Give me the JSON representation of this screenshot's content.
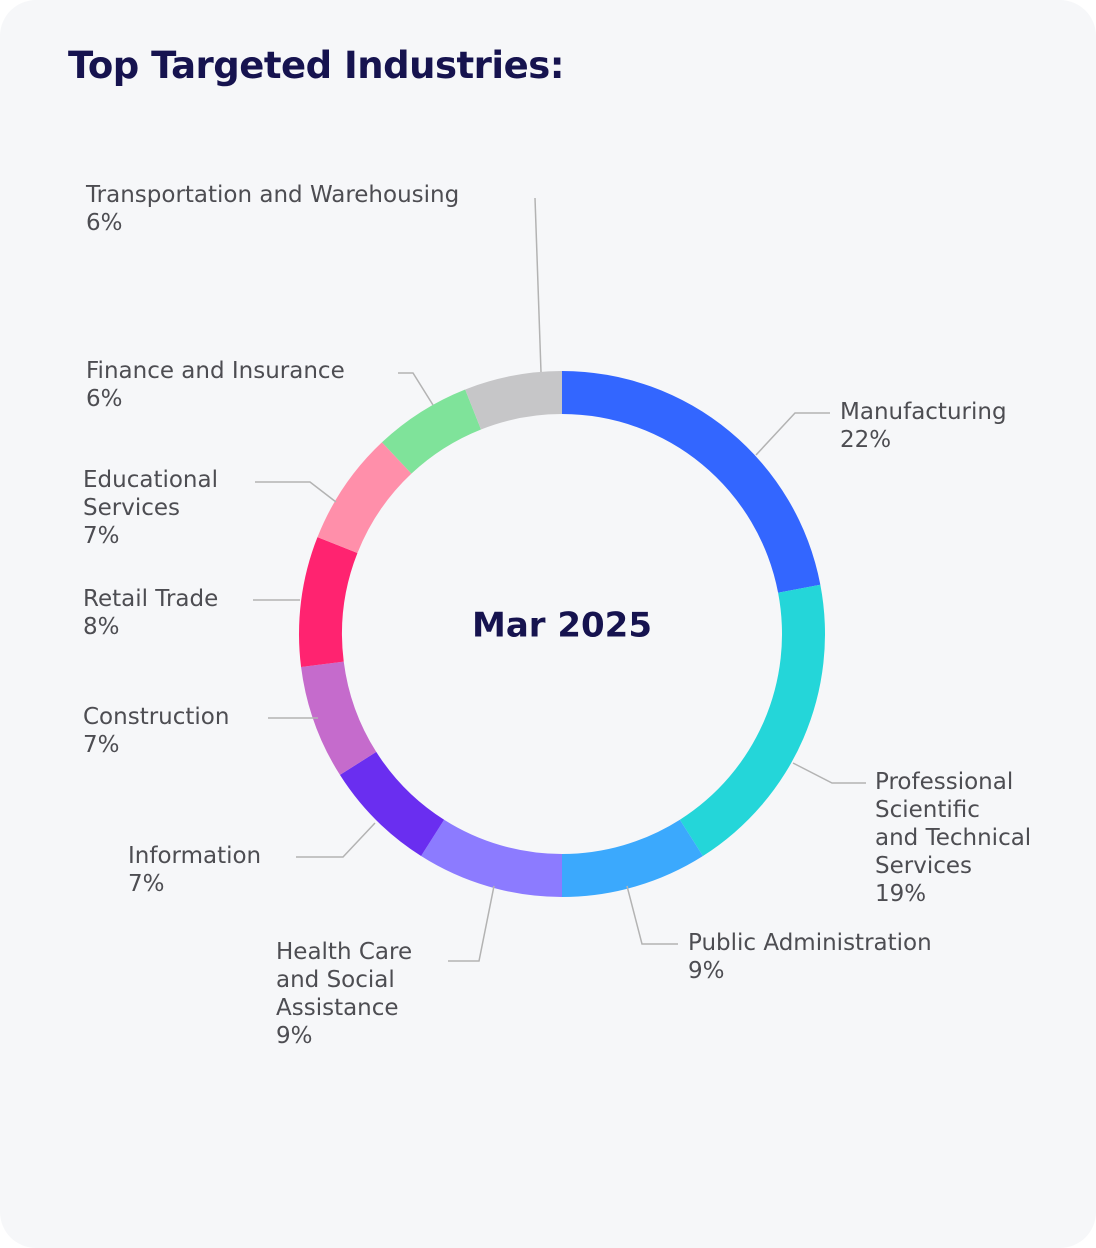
{
  "chart_data": {
    "type": "pie",
    "variant": "donut",
    "title": "Top Targeted Industries:",
    "center_label": "Mar 2025",
    "slices": [
      {
        "label": "Manufacturing",
        "display_label": "Manufacturing",
        "percent_label": "22%",
        "value": 22,
        "color": "#3366ff"
      },
      {
        "label": "Professional Scientific and Technical Services",
        "display_label": "Professional\nScientific\nand Technical\nServices",
        "percent_label": "19%",
        "value": 19,
        "color": "#24d6d9"
      },
      {
        "label": "Public Administration",
        "display_label": "Public Administration",
        "percent_label": "9%",
        "value": 9,
        "color": "#3ba9fd"
      },
      {
        "label": "Health Care and Social Assistance",
        "display_label": "Health Care\nand Social\nAssistance",
        "percent_label": "9%",
        "value": 9,
        "color": "#8c7bff"
      },
      {
        "label": "Information",
        "display_label": "Information",
        "percent_label": "7%",
        "value": 7,
        "color": "#6a2ef0"
      },
      {
        "label": "Construction",
        "display_label": "Construction",
        "percent_label": "7%",
        "value": 7,
        "color": "#c56bcc"
      },
      {
        "label": "Retail Trade",
        "display_label": "Retail Trade",
        "percent_label": "8%",
        "value": 8,
        "color": "#ff2370"
      },
      {
        "label": "Educational Services",
        "display_label": "Educational\nServices",
        "percent_label": "7%",
        "value": 7,
        "color": "#ff8faa"
      },
      {
        "label": "Finance and Insurance",
        "display_label": "Finance and Insurance",
        "percent_label": "6%",
        "value": 6,
        "color": "#7fe39a"
      },
      {
        "label": "Transportation and Warehousing",
        "display_label": "Transportation and Warehousing",
        "percent_label": "6%",
        "value": 6,
        "color": "#c6c6c8"
      }
    ]
  },
  "colors": {
    "card_background": "#f6f7f9",
    "title": "#16134f",
    "center_label": "#16134f",
    "label_text": "#4d4d52",
    "leader_line": "#b3b3b3"
  }
}
